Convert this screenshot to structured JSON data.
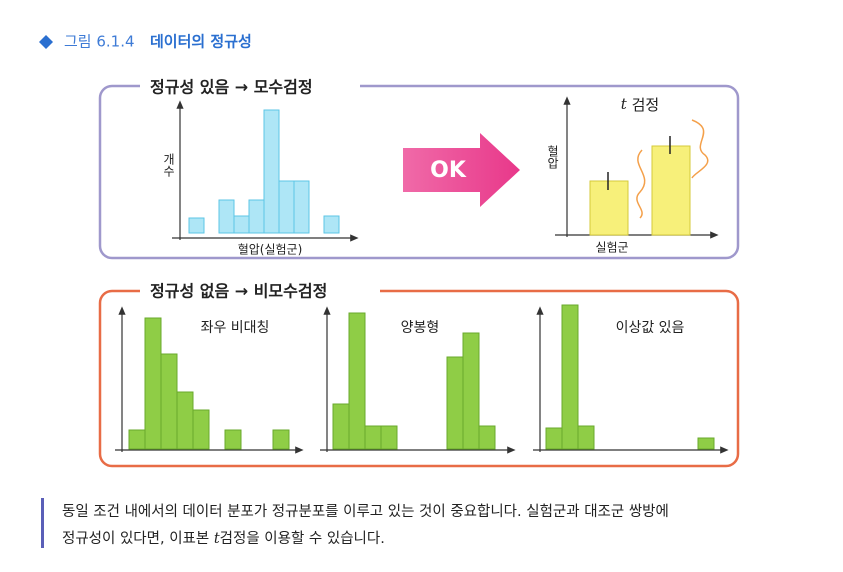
{
  "header": {
    "figure": "그림 6.1.4",
    "title": "데이터의 정규성"
  },
  "parametric": {
    "title": "정규성 있음 → 모수검정",
    "hist_y_label": "개수",
    "hist_x_label": "혈압(실험군)",
    "arrow": "OK",
    "test_title": {
      "italic": "t",
      "text": "검정"
    },
    "bar_y_label": "혈압",
    "bar_x_label": "실험군"
  },
  "nonparametric": {
    "title": "정규성 없음 → 비모수검정",
    "panels": [
      "좌우 비대칭",
      "양봉형",
      "이상값 있음"
    ]
  },
  "paragraph": {
    "line1": "동일 조건 내에서의 데이터 분포가 정규분포를 이루고 있는 것이 중요합니다. 실험군과 대조군 쌍방에",
    "line2_before": "정규성이 있다면, 이표본 ",
    "line2_italic": "t",
    "line2_after": "검정을 이용할 수 있습니다."
  }
}
